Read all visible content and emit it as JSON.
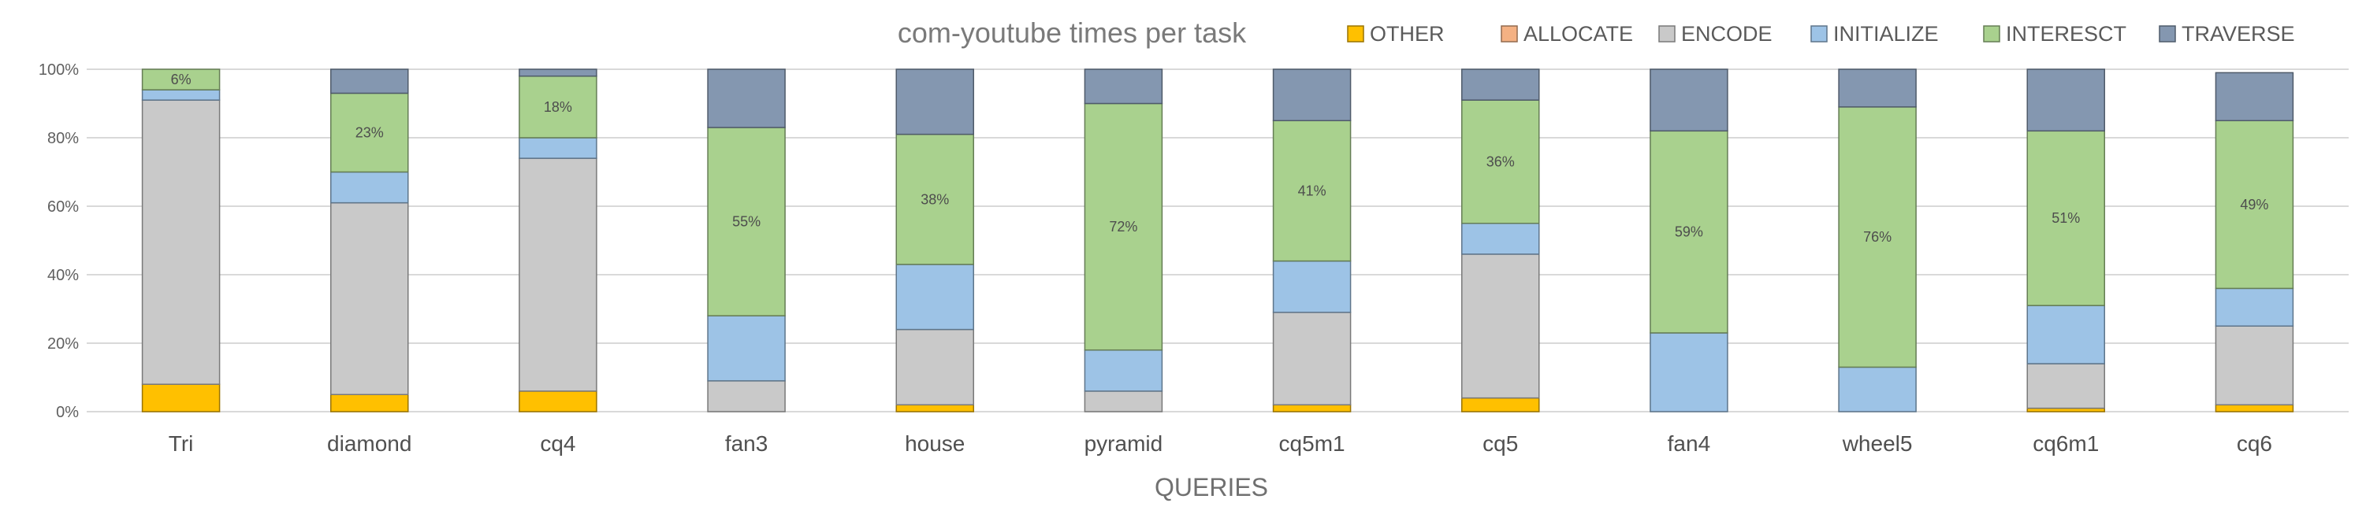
{
  "chart_data": {
    "type": "bar",
    "stacked": true,
    "percent_stacked": true,
    "title": "com-youtube times per task",
    "xlabel": "QUERIES",
    "ylabel": "",
    "ylim": [
      0,
      100
    ],
    "yticks": [
      "0%",
      "20%",
      "40%",
      "60%",
      "80%",
      "100%"
    ],
    "legend_position": "top-right",
    "categories": [
      "Tri",
      "diamond",
      "cq4",
      "fan3",
      "house",
      "pyramid",
      "cq5m1",
      "cq5",
      "fan4",
      "wheel5",
      "cq6m1",
      "cq6"
    ],
    "series": [
      {
        "name": "OTHER",
        "color": "#FFC000",
        "values": [
          8,
          5,
          6,
          0,
          2,
          0,
          2,
          4,
          0,
          0,
          1,
          2
        ]
      },
      {
        "name": "ALLOCATE",
        "color": "#F4B183",
        "values": [
          0,
          0,
          0,
          0,
          0,
          0,
          0,
          0,
          0,
          0,
          0,
          0
        ]
      },
      {
        "name": "ENCODE",
        "color": "#C9C9C9",
        "values": [
          83,
          56,
          68,
          9,
          22,
          6,
          27,
          42,
          0,
          0,
          13,
          23
        ]
      },
      {
        "name": "INITIALIZE",
        "color": "#9DC3E6",
        "values": [
          3,
          9,
          6,
          19,
          19,
          12,
          15,
          9,
          23,
          13,
          17,
          11
        ]
      },
      {
        "name": "INTERESCT",
        "color": "#A9D18E",
        "values": [
          6,
          23,
          18,
          55,
          38,
          72,
          41,
          36,
          59,
          76,
          51,
          49
        ]
      },
      {
        "name": "TRAVERSE",
        "color": "#8497B0",
        "values": [
          0,
          7,
          2,
          17,
          19,
          10,
          15,
          9,
          18,
          11,
          18,
          14
        ]
      }
    ],
    "data_labels": {
      "series": "INTERESCT",
      "values": [
        "6%",
        "23%",
        "18%",
        "55%",
        "38%",
        "72%",
        "41%",
        "36%",
        "59%",
        "76%",
        "51%",
        "49%"
      ]
    }
  }
}
